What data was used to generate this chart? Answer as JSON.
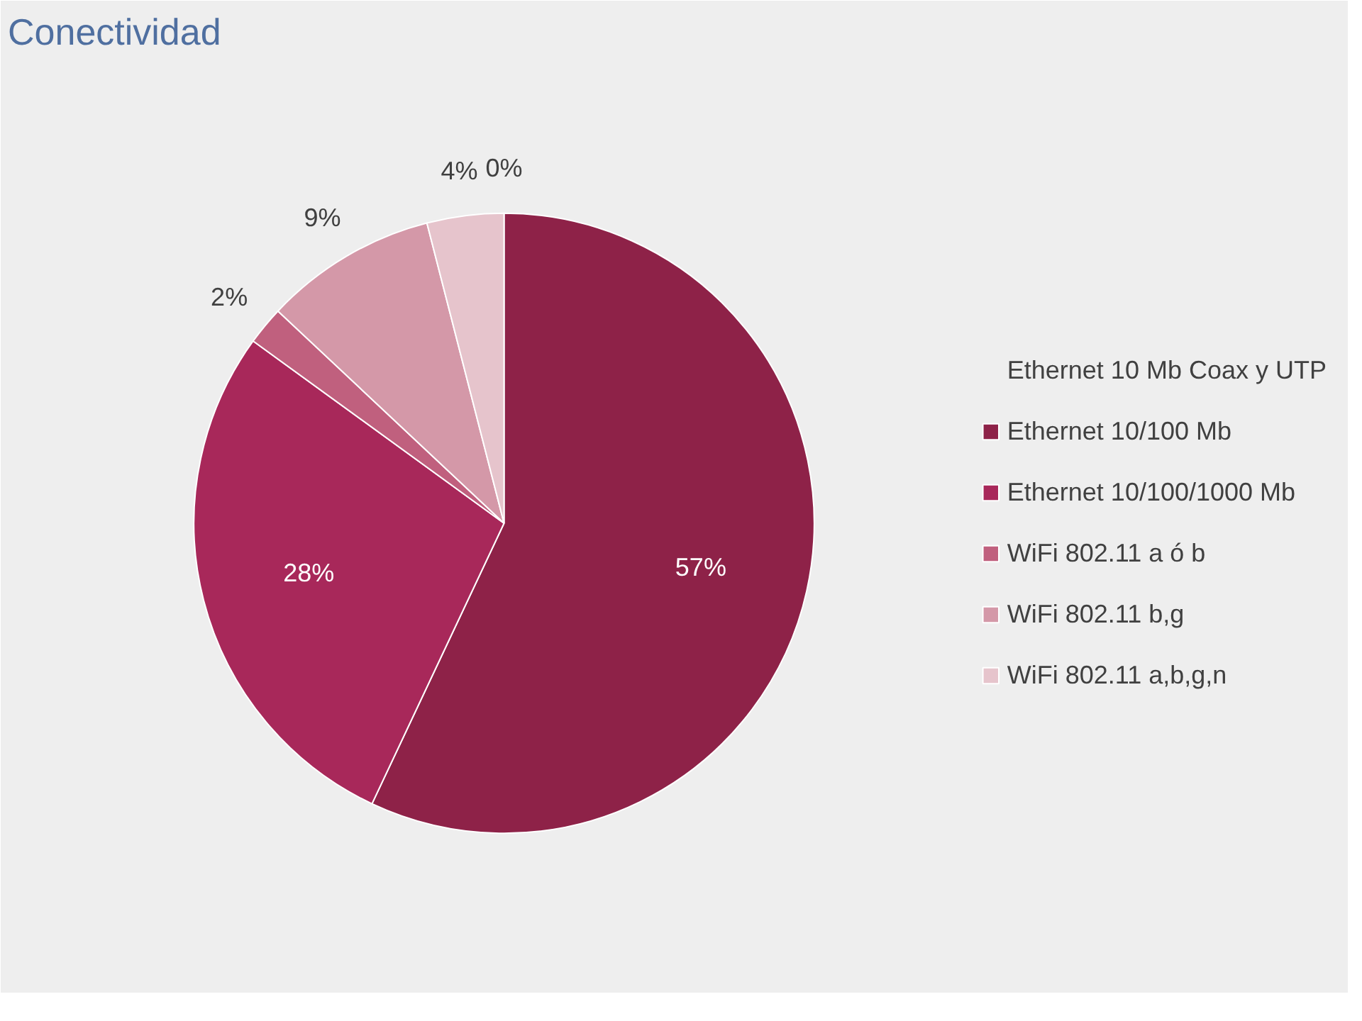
{
  "chart_data": {
    "type": "pie",
    "title": "Conectividad",
    "categories": [
      "Ethernet 10 Mb Coax y UTP",
      "Ethernet 10/100 Mb",
      "Ethernet 10/100/1000 Mb",
      "WiFi 802.11 a ó b",
      "WiFi 802.11 b,g",
      "WiFi 802.11 a,b,g,n"
    ],
    "values": [
      0,
      57,
      28,
      2,
      9,
      4
    ],
    "colors": [
      "#7a2140",
      "#8e2248",
      "#a8285a",
      "#c0607e",
      "#d498a8",
      "#e6c4cc"
    ],
    "value_labels": [
      "0%",
      "57%",
      "28%",
      "2%",
      "9%",
      "4%"
    ],
    "legend": "right"
  }
}
